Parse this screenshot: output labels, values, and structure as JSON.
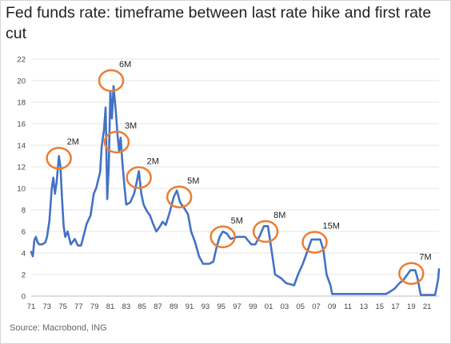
{
  "title": "Fed funds rate: timeframe between last rate hike and first rate cut",
  "source": "Source: Macrobond, ING",
  "colors": {
    "line": "#4472c4",
    "circle": "#ed7d31",
    "grid": "#e6e6e6"
  },
  "chart_data": {
    "type": "line",
    "title": "Fed funds rate: timeframe between last rate hike and first rate cut",
    "xlabel": "",
    "ylabel": "",
    "xlim": [
      1971,
      2022.5
    ],
    "ylim": [
      0,
      22
    ],
    "yticks": [
      "0",
      "2",
      "4",
      "6",
      "8",
      "10",
      "12",
      "14",
      "16",
      "18",
      "20",
      "22"
    ],
    "xticks": [
      "71",
      "73",
      "75",
      "77",
      "79",
      "81",
      "83",
      "85",
      "87",
      "89",
      "91",
      "93",
      "95",
      "97",
      "99",
      "01",
      "03",
      "05",
      "07",
      "09",
      "11",
      "13",
      "15",
      "17",
      "19",
      "21"
    ],
    "grid": "horizontal",
    "legend": "none",
    "series": [
      {
        "points": [
          [
            1971.0,
            4.1
          ],
          [
            1971.2,
            3.7
          ],
          [
            1971.4,
            5.2
          ],
          [
            1971.6,
            5.5
          ],
          [
            1971.8,
            5.0
          ],
          [
            1972.0,
            4.8
          ],
          [
            1972.4,
            4.8
          ],
          [
            1972.8,
            5.0
          ],
          [
            1973.0,
            5.5
          ],
          [
            1973.3,
            7.0
          ],
          [
            1973.6,
            10.0
          ],
          [
            1973.8,
            11.0
          ],
          [
            1974.0,
            9.5
          ],
          [
            1974.2,
            10.5
          ],
          [
            1974.5,
            13.0
          ],
          [
            1974.7,
            12.0
          ],
          [
            1974.9,
            9.0
          ],
          [
            1975.1,
            6.5
          ],
          [
            1975.3,
            5.5
          ],
          [
            1975.6,
            6.0
          ],
          [
            1976.0,
            4.8
          ],
          [
            1976.5,
            5.3
          ],
          [
            1976.9,
            4.7
          ],
          [
            1977.3,
            4.7
          ],
          [
            1977.7,
            5.8
          ],
          [
            1978.0,
            6.7
          ],
          [
            1978.5,
            7.5
          ],
          [
            1978.9,
            9.5
          ],
          [
            1979.2,
            10.0
          ],
          [
            1979.7,
            11.5
          ],
          [
            1979.9,
            13.8
          ],
          [
            1980.2,
            15.5
          ],
          [
            1980.4,
            17.5
          ],
          [
            1980.6,
            9.0
          ],
          [
            1980.8,
            12.0
          ],
          [
            1981.0,
            19.0
          ],
          [
            1981.2,
            16.5
          ],
          [
            1981.4,
            19.5
          ],
          [
            1981.7,
            17.0
          ],
          [
            1981.9,
            15.0
          ],
          [
            1982.1,
            13.5
          ],
          [
            1982.3,
            14.7
          ],
          [
            1982.5,
            12.5
          ],
          [
            1982.8,
            10.0
          ],
          [
            1983.0,
            8.5
          ],
          [
            1983.5,
            8.7
          ],
          [
            1984.0,
            9.5
          ],
          [
            1984.3,
            10.5
          ],
          [
            1984.6,
            11.6
          ],
          [
            1984.9,
            9.5
          ],
          [
            1985.2,
            8.5
          ],
          [
            1985.6,
            7.9
          ],
          [
            1986.0,
            7.5
          ],
          [
            1986.4,
            6.7
          ],
          [
            1986.8,
            6.0
          ],
          [
            1987.2,
            6.4
          ],
          [
            1987.6,
            6.9
          ],
          [
            1988.0,
            6.6
          ],
          [
            1988.5,
            7.8
          ],
          [
            1989.0,
            9.2
          ],
          [
            1989.4,
            9.8
          ],
          [
            1989.8,
            8.7
          ],
          [
            1990.3,
            8.2
          ],
          [
            1990.8,
            7.6
          ],
          [
            1991.2,
            6.0
          ],
          [
            1991.7,
            5.0
          ],
          [
            1992.2,
            3.7
          ],
          [
            1992.7,
            3.0
          ],
          [
            1993.5,
            3.0
          ],
          [
            1994.0,
            3.2
          ],
          [
            1994.4,
            4.5
          ],
          [
            1994.8,
            5.5
          ],
          [
            1995.2,
            6.0
          ],
          [
            1995.7,
            5.8
          ],
          [
            1996.2,
            5.3
          ],
          [
            1997.0,
            5.5
          ],
          [
            1998.0,
            5.5
          ],
          [
            1998.8,
            4.8
          ],
          [
            1999.3,
            4.8
          ],
          [
            1999.8,
            5.5
          ],
          [
            2000.4,
            6.5
          ],
          [
            2000.9,
            6.5
          ],
          [
            2001.3,
            4.5
          ],
          [
            2001.8,
            2.0
          ],
          [
            2002.5,
            1.7
          ],
          [
            2003.2,
            1.2
          ],
          [
            2004.2,
            1.0
          ],
          [
            2004.7,
            2.0
          ],
          [
            2005.3,
            3.0
          ],
          [
            2005.8,
            4.0
          ],
          [
            2006.4,
            5.25
          ],
          [
            2007.5,
            5.25
          ],
          [
            2007.9,
            4.3
          ],
          [
            2008.3,
            2.0
          ],
          [
            2008.8,
            1.0
          ],
          [
            2009.0,
            0.2
          ],
          [
            2015.8,
            0.2
          ],
          [
            2016.3,
            0.4
          ],
          [
            2016.9,
            0.7
          ],
          [
            2017.5,
            1.2
          ],
          [
            2018.0,
            1.5
          ],
          [
            2018.5,
            2.0
          ],
          [
            2018.9,
            2.4
          ],
          [
            2019.5,
            2.4
          ],
          [
            2019.8,
            1.6
          ],
          [
            2020.2,
            0.1
          ],
          [
            2022.0,
            0.1
          ],
          [
            2022.2,
            0.8
          ],
          [
            2022.4,
            1.6
          ],
          [
            2022.5,
            2.5
          ]
        ]
      }
    ],
    "annotations": [
      {
        "label": "2M",
        "x": 1974.5,
        "y": 12.8
      },
      {
        "label": "6M",
        "x": 1981.1,
        "y": 20.0
      },
      {
        "label": "3M",
        "x": 1981.8,
        "y": 14.3
      },
      {
        "label": "2M",
        "x": 1984.6,
        "y": 11.0
      },
      {
        "label": "5M",
        "x": 1989.7,
        "y": 9.2
      },
      {
        "label": "5M",
        "x": 1995.2,
        "y": 5.5
      },
      {
        "label": "8M",
        "x": 2000.6,
        "y": 6.0
      },
      {
        "label": "15M",
        "x": 2006.8,
        "y": 5.0
      },
      {
        "label": "7M",
        "x": 2019.0,
        "y": 2.1
      }
    ]
  }
}
